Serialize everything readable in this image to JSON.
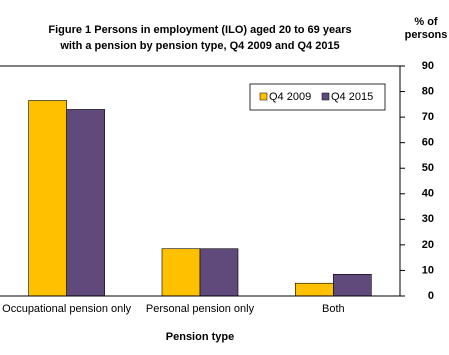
{
  "chart_data": {
    "type": "bar",
    "title": [
      "Figure 1  Persons in employment (ILO) aged 20 to 69 years",
      "with a pension by pension type, Q4 2009 and Q4 2015"
    ],
    "y_label": [
      "% of",
      "persons"
    ],
    "x_label": "Pension type",
    "categories": [
      "Occupational pension only",
      "Personal pension only",
      "Both"
    ],
    "series": [
      {
        "name": "Q4 2009",
        "color": "#FFC000",
        "values": [
          76.5,
          18.5,
          5
        ]
      },
      {
        "name": "Q4 2015",
        "color": "#604A7B",
        "values": [
          73,
          18.5,
          8.5
        ]
      }
    ],
    "ylim": [
      0,
      90
    ],
    "yticks": [
      0,
      10,
      20,
      30,
      40,
      50,
      60,
      70,
      80,
      90
    ],
    "y_axis_side": "right",
    "grid": false,
    "legend": "upper right"
  }
}
